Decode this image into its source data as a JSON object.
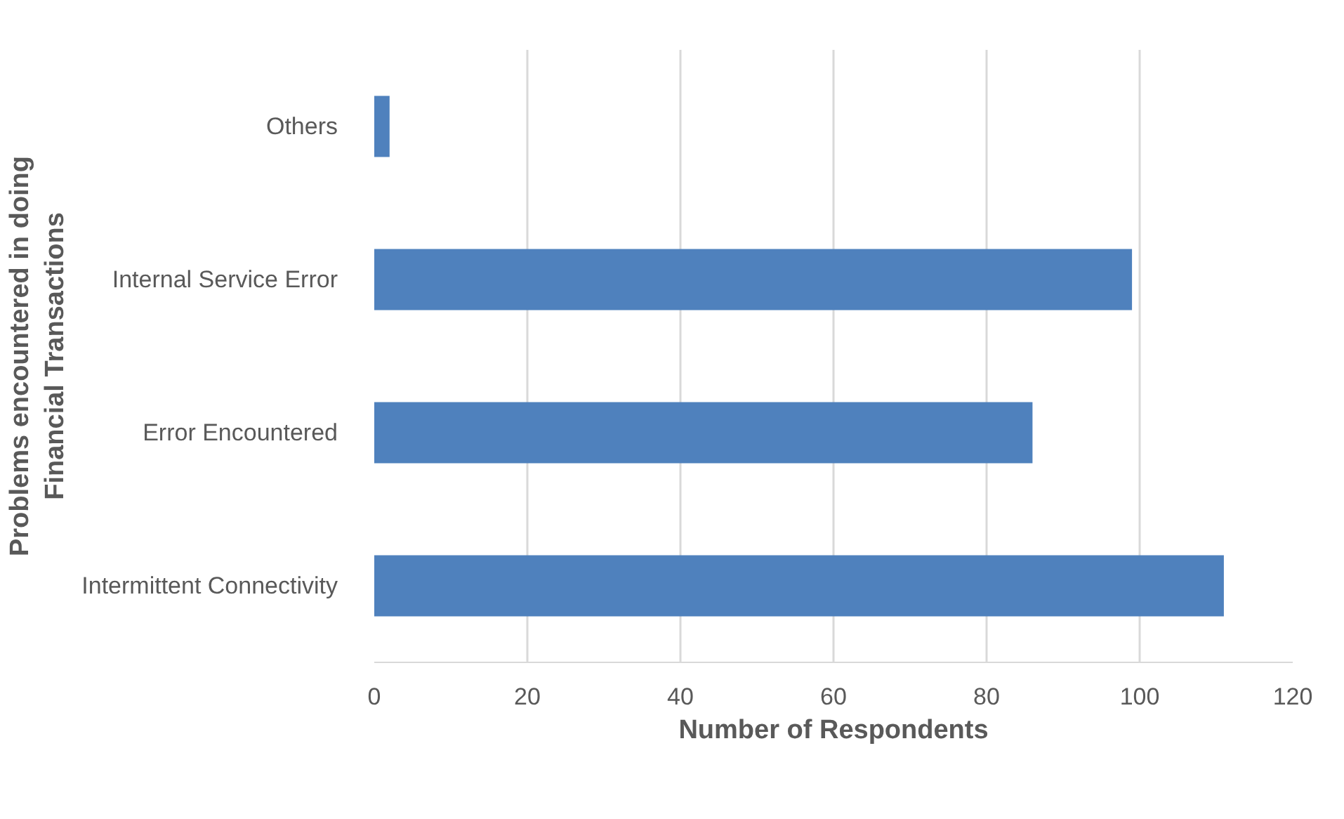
{
  "chart_data": {
    "type": "bar",
    "orientation": "horizontal",
    "categories": [
      "Others",
      "Internal Service Error",
      "Error Encountered",
      "Intermittent Connectivity"
    ],
    "values": [
      2,
      99,
      86,
      111
    ],
    "color": "#4f81bd",
    "xlabel": "Number of Respondents",
    "ylabel": "Problems encountered in doing\nFinancial Transactions",
    "xlim": [
      0,
      120
    ],
    "xticks": [
      0,
      20,
      40,
      60,
      80,
      100,
      120
    ],
    "grid": "x"
  }
}
